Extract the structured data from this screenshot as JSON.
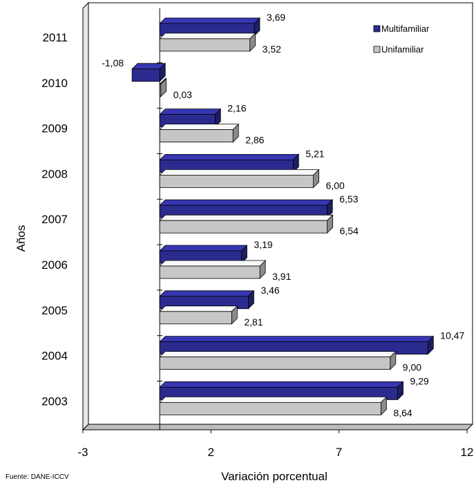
{
  "chart_data": {
    "type": "bar",
    "orientation": "horizontal",
    "style": "3d",
    "xlabel": "Variación porcentual",
    "ylabel": "Años",
    "xlim": [
      -3,
      12
    ],
    "xticks": [
      "-3",
      "2",
      "7",
      "12"
    ],
    "grid": false,
    "legend_position": "top-right",
    "categories": [
      "2011",
      "2010",
      "2009",
      "2008",
      "2007",
      "2006",
      "2005",
      "2004",
      "2003"
    ],
    "series": [
      {
        "name": "Multifamiliar",
        "color": "#2B2B8F",
        "values": [
          3.69,
          -1.08,
          2.16,
          5.21,
          6.53,
          3.19,
          3.46,
          10.47,
          9.29
        ],
        "labels": [
          "3,69",
          "-1,08",
          "2,16",
          "5,21",
          "6,53",
          "3,19",
          "3,46",
          "10,47",
          "9,29"
        ]
      },
      {
        "name": "Unifamiliar",
        "color": "#C6C6C6",
        "values": [
          3.52,
          0.03,
          2.86,
          6.0,
          6.54,
          3.91,
          2.81,
          9.0,
          8.64
        ],
        "labels": [
          "3,52",
          "0,03",
          "2,86",
          "6,00",
          "6,54",
          "3,91",
          "2,81",
          "9,00",
          "8,64"
        ]
      }
    ]
  },
  "source_note": "Fuente: DANE-ICCV"
}
